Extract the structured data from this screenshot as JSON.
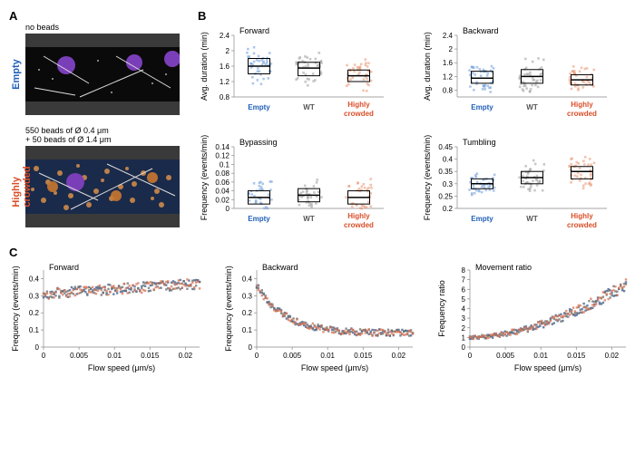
{
  "panelA": {
    "label": "A",
    "empty": {
      "sideLabel": "Empty",
      "sideColor": "#1f5fb8",
      "caption": "no beads",
      "borderColor": "#1f5fb8"
    },
    "crowded": {
      "sideLabel": "Highly crowded",
      "sideColor": "#d94f2a",
      "caption": "550 beads of Ø 0.4 μm\n+ 50 beads of Ø 1.4 μm",
      "borderColor": "#d94f2a"
    }
  },
  "panelB": {
    "label": "B",
    "categories": [
      "Empty",
      "WT",
      "Highly crowded"
    ],
    "catColors": [
      "#1f5fb8",
      "#555555",
      "#d94f2a"
    ],
    "catColorsLight": [
      "#6a9bd8",
      "#9a9a9a",
      "#e8916f"
    ],
    "plots": [
      {
        "title": "Forward",
        "ylabel": "Avg. duration (min)",
        "ylim": [
          0.8,
          2.4
        ],
        "yticks": [
          0.8,
          1.2,
          1.6,
          2.0,
          2.4
        ],
        "boxes": [
          {
            "q1": 1.4,
            "med": 1.6,
            "q3": 1.8
          },
          {
            "q1": 1.35,
            "med": 1.55,
            "q3": 1.7
          },
          {
            "q1": 1.2,
            "med": 1.35,
            "q3": 1.5
          }
        ]
      },
      {
        "title": "Backward",
        "ylabel": "Avg. duration (min)",
        "ylim": [
          0.6,
          2.4
        ],
        "yticks": [
          0.8,
          1.2,
          1.6,
          2.0,
          2.4
        ],
        "boxes": [
          {
            "q1": 1.0,
            "med": 1.15,
            "q3": 1.35
          },
          {
            "q1": 1.0,
            "med": 1.2,
            "q3": 1.4
          },
          {
            "q1": 0.95,
            "med": 1.1,
            "q3": 1.25
          }
        ]
      },
      {
        "title": "Bypassing",
        "ylabel": "Frequency (events/min)",
        "ylim": [
          0,
          0.14
        ],
        "yticks": [
          0,
          0.02,
          0.04,
          0.06,
          0.08,
          0.1,
          0.12,
          0.14
        ],
        "boxes": [
          {
            "q1": 0.01,
            "med": 0.025,
            "q3": 0.04
          },
          {
            "q1": 0.015,
            "med": 0.03,
            "q3": 0.045
          },
          {
            "q1": 0.01,
            "med": 0.025,
            "q3": 0.04
          }
        ]
      },
      {
        "title": "Tumbling",
        "ylabel": "Frequency (events/min)",
        "ylim": [
          0.2,
          0.45
        ],
        "yticks": [
          0.2,
          0.25,
          0.3,
          0.35,
          0.4,
          0.45
        ],
        "boxes": [
          {
            "q1": 0.28,
            "med": 0.3,
            "q3": 0.32
          },
          {
            "q1": 0.3,
            "med": 0.325,
            "q3": 0.35
          },
          {
            "q1": 0.32,
            "med": 0.35,
            "q3": 0.37
          }
        ]
      }
    ]
  },
  "panelC": {
    "label": "C",
    "xlabel": "Flow speed (μm/s)",
    "xlim": [
      0,
      0.022
    ],
    "xticks": [
      0,
      0.005,
      0.01,
      0.015,
      0.02
    ],
    "colors": [
      "#3a5a8a",
      "#6a6a6a",
      "#d87050"
    ],
    "plots": [
      {
        "title": "Forward",
        "ylabel": "Frequency (events/min)",
        "ylim": [
          0,
          0.45
        ],
        "yticks": [
          0,
          0.1,
          0.2,
          0.3,
          0.4
        ],
        "trend": "flat_rise"
      },
      {
        "title": "Backward",
        "ylabel": "Frequency (events/min)",
        "ylim": [
          0,
          0.45
        ],
        "yticks": [
          0,
          0.1,
          0.2,
          0.3,
          0.4
        ],
        "trend": "decay"
      },
      {
        "title": "Movement ratio",
        "ylabel": "Frequency ratio",
        "ylim": [
          0,
          8
        ],
        "yticks": [
          0,
          1,
          2,
          3,
          4,
          5,
          6,
          7,
          8
        ],
        "trend": "rise"
      }
    ]
  }
}
